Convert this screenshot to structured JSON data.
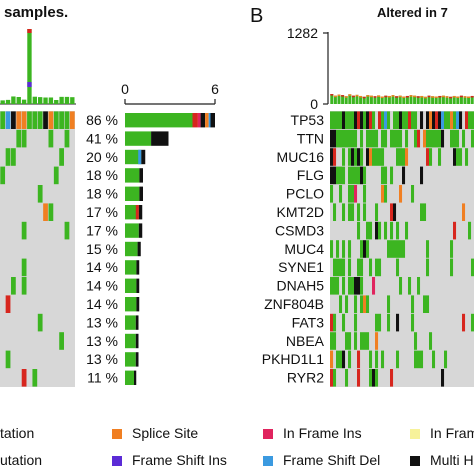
{
  "panel_a": {
    "title_fragment": "samples.",
    "percents": [
      "86 %",
      "41 %",
      "20 %",
      "18 %",
      "18 %",
      "17 %",
      "17 %",
      "15 %",
      "14 %",
      "14 %",
      "14 %",
      "13 %",
      "13 %",
      "13 %",
      "11 %"
    ]
  },
  "panel_b": {
    "letter": "B",
    "title_fragment": "Altered in 7",
    "genes": [
      "TP53",
      "TTN",
      "MUC16",
      "FLG",
      "PCLO",
      "KMT2D",
      "CSMD3",
      "MUC4",
      "SYNE1",
      "DNAH5",
      "ZNF804B",
      "FAT3",
      "NBEA",
      "PKHD1L1",
      "RYR2"
    ]
  },
  "legend": {
    "items": [
      {
        "label": "tation",
        "color": "#3cb521",
        "row": 0
      },
      {
        "label": "Splice Site",
        "color": "#f07f22",
        "row": 0
      },
      {
        "label": "In Frame Ins",
        "color": "#e0245e",
        "row": 0
      },
      {
        "label": "In Frame D",
        "color": "#f7f29a",
        "row": 0
      },
      {
        "label": "utation",
        "color": "#3cb521",
        "row": 1
      },
      {
        "label": "Frame Shift Ins",
        "color": "#5b2bd6",
        "row": 1
      },
      {
        "label": "Frame Shift Del",
        "color": "#3b9ae0",
        "row": 1
      },
      {
        "label": "Multi Hit",
        "color": "#111111",
        "row": 1
      }
    ]
  },
  "colors": {
    "missense": "#3cb521",
    "multi_hit": "#111111",
    "nonsense": "#d7261e",
    "splice": "#f07f22",
    "in_frame_ins": "#e0245e",
    "frame_shift_ins": "#5b2bd6",
    "frame_shift_del": "#3b9ae0",
    "in_frame_del": "#f7f29a",
    "none": "#d7d7d7"
  },
  "chart_data": [
    {
      "type": "bar",
      "orientation": "horizontal",
      "panel": "A",
      "xticks": [
        "0",
        "6"
      ],
      "xlim": [
        0,
        6
      ],
      "categories": [
        "86 %",
        "41 %",
        "20 %",
        "18 %",
        "18 %",
        "17 %",
        "17 %",
        "15 %",
        "14 %",
        "14 %",
        "14 %",
        "13 %",
        "13 %",
        "13 %",
        "11 %"
      ],
      "values": [
        6.0,
        2.9,
        1.35,
        1.2,
        1.2,
        1.15,
        1.15,
        1.05,
        0.95,
        0.95,
        0.95,
        0.9,
        0.9,
        0.9,
        0.75
      ]
    },
    {
      "type": "bar",
      "panel": "B",
      "yticks": [
        "1282",
        "0"
      ],
      "ylim": [
        0,
        1282
      ],
      "values": [
        180,
        150,
        170,
        160,
        140,
        175,
        150,
        165,
        145,
        130,
        160,
        150,
        140,
        155,
        135,
        150,
        145,
        160,
        140,
        150,
        135,
        145,
        160,
        150,
        140,
        145,
        130,
        150,
        140,
        135,
        145,
        150,
        140,
        130,
        145,
        135,
        150,
        140,
        135,
        145
      ]
    },
    {
      "type": "heatmap",
      "panel": "B",
      "rows": [
        "TP53",
        "TTN",
        "MUC16",
        "FLG",
        "PCLO",
        "KMT2D",
        "CSMD3",
        "MUC4",
        "SYNE1",
        "DNAH5",
        "ZNF804B",
        "FAT3",
        "NBEA",
        "PKHD1L1",
        "RYR2"
      ]
    }
  ]
}
